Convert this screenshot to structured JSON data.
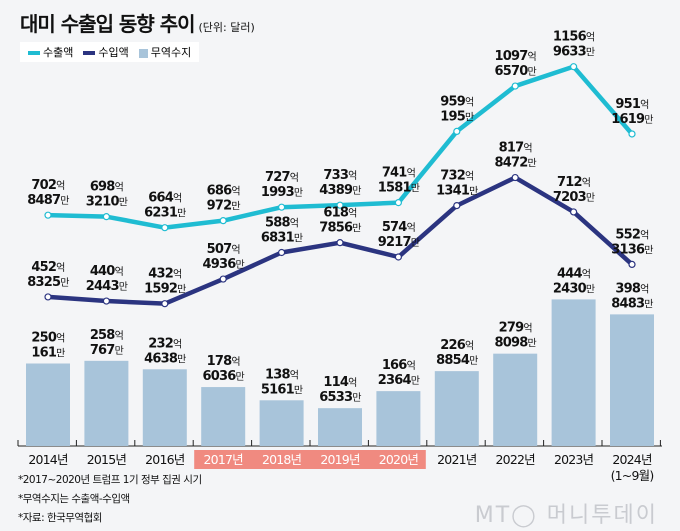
{
  "title": "대미 수출입 동향 추이",
  "unit": "(단위: 달러)",
  "legend": {
    "export": "수출액",
    "import": "수입액",
    "balance": "무역수지"
  },
  "colors": {
    "export": "#1fbcd2",
    "import": "#2b3480",
    "balance": "#a8c4da",
    "highlight": "#f08a80",
    "background": "#f4f5f7"
  },
  "notes": [
    "*2017~2020년 트럼프 1기 정부 집권 시기",
    "*무역수지는 수출액-수입액",
    "*자료: 한국무역협회"
  ],
  "logo": "MT 머니투데이",
  "chart_data": {
    "type": "bar+line",
    "unit_major": "억",
    "unit_minor": "만",
    "categories": [
      "2014년",
      "2015년",
      "2016년",
      "2017년",
      "2018년",
      "2019년",
      "2020년",
      "2021년",
      "2022년",
      "2023년",
      "2024년"
    ],
    "category_sub": [
      "",
      "",
      "",
      "",
      "",
      "",
      "",
      "",
      "",
      "",
      "(1~9월)"
    ],
    "highlighted_categories": [
      "2017년",
      "2018년",
      "2019년",
      "2020년"
    ],
    "series": [
      {
        "name": "수출액",
        "type": "line",
        "eok": [
          702,
          698,
          664,
          686,
          727,
          733,
          741,
          959,
          1097,
          1156,
          951
        ],
        "man": [
          8487,
          3210,
          6231,
          972,
          1993,
          4389,
          1581,
          195,
          6570,
          9633,
          1619
        ]
      },
      {
        "name": "수입액",
        "type": "line",
        "eok": [
          452,
          440,
          432,
          507,
          588,
          618,
          574,
          732,
          817,
          712,
          552
        ],
        "man": [
          8325,
          2443,
          1592,
          4936,
          6831,
          7856,
          9217,
          1341,
          8472,
          7203,
          3136
        ]
      },
      {
        "name": "무역수지",
        "type": "bar",
        "eok": [
          250,
          258,
          232,
          178,
          138,
          114,
          166,
          226,
          279,
          444,
          398
        ],
        "man": [
          161,
          767,
          4638,
          6036,
          5161,
          6533,
          2364,
          8854,
          8098,
          2430,
          8483
        ]
      }
    ],
    "grid": false,
    "legend_position": "top-left"
  }
}
